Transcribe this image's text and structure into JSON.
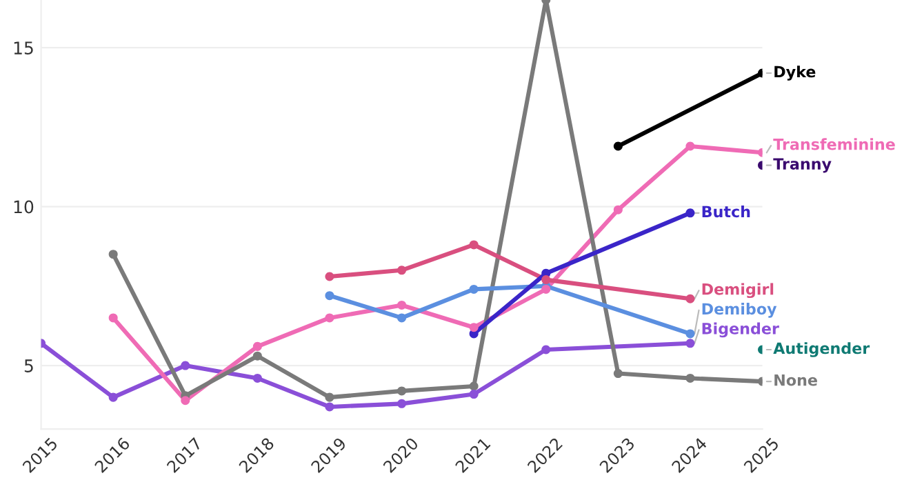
{
  "chart_data": {
    "type": "line",
    "x": [
      2015,
      2016,
      2017,
      2018,
      2019,
      2020,
      2021,
      2022,
      2023,
      2024,
      2025
    ],
    "xlim": [
      2015,
      2025
    ],
    "xticks": [
      2015,
      2016,
      2017,
      2018,
      2019,
      2020,
      2021,
      2022,
      2023,
      2024,
      2025
    ],
    "ylim": [
      3,
      16.5
    ],
    "yticks": [
      5,
      10,
      15
    ],
    "grid": "y",
    "marker": "circle",
    "line_style": "solid",
    "legend": false,
    "series": [
      {
        "name": "Bigender",
        "color": "#8a4fd8",
        "values": [
          5.7,
          4.0,
          5.0,
          4.6,
          3.7,
          3.8,
          4.1,
          5.5,
          null,
          5.7,
          null
        ]
      },
      {
        "name": "Transfeminine",
        "color": "#ef6bb5",
        "values": [
          null,
          6.5,
          3.9,
          5.6,
          6.5,
          6.9,
          6.2,
          7.4,
          9.9,
          11.9,
          11.7
        ]
      },
      {
        "name": "None",
        "color": "#7a7a7a",
        "values": [
          null,
          8.5,
          4.05,
          5.3,
          4.0,
          4.2,
          4.35,
          16.5,
          4.75,
          4.6,
          4.5
        ]
      },
      {
        "name": "Demigirl",
        "color": "#d94f7f",
        "values": [
          null,
          null,
          null,
          null,
          7.8,
          8.0,
          8.8,
          7.7,
          null,
          7.1,
          null
        ]
      },
      {
        "name": "Demiboy",
        "color": "#5b8fe0",
        "values": [
          null,
          null,
          null,
          null,
          7.2,
          6.5,
          7.4,
          7.5,
          null,
          6.0,
          null
        ]
      },
      {
        "name": "Butch",
        "color": "#3a25c8",
        "values": [
          null,
          null,
          null,
          null,
          null,
          null,
          6.0,
          7.9,
          null,
          9.8,
          null
        ]
      },
      {
        "name": "Dyke",
        "color": "#000000",
        "values": [
          null,
          null,
          null,
          null,
          null,
          null,
          null,
          null,
          11.9,
          null,
          14.2
        ]
      },
      {
        "name": "Tranny",
        "color": "#3a0a6e",
        "values": [
          null,
          null,
          null,
          null,
          null,
          null,
          null,
          null,
          null,
          null,
          11.3
        ]
      },
      {
        "name": "Autigender",
        "color": "#0f7a73",
        "values": [
          null,
          null,
          null,
          null,
          null,
          null,
          null,
          null,
          null,
          null,
          5.5
        ]
      }
    ]
  }
}
